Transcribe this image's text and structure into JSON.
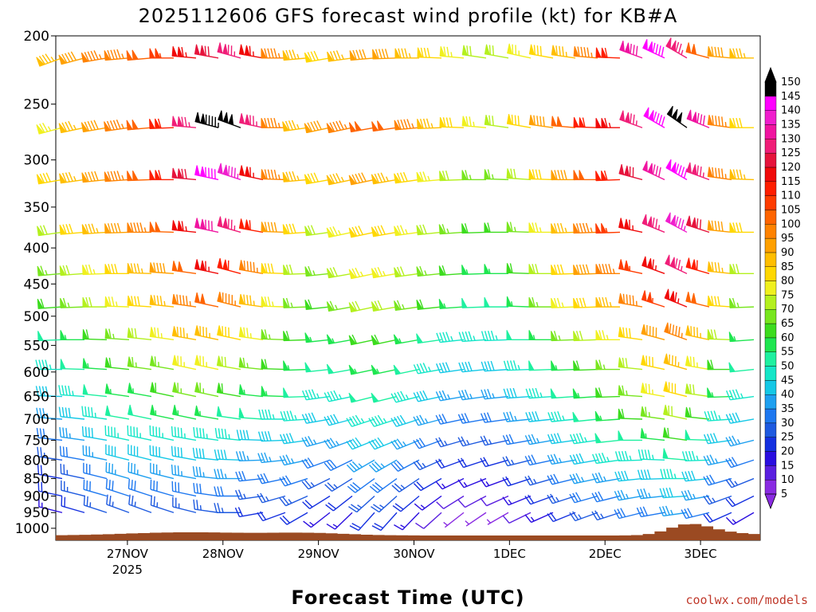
{
  "chart_data": {
    "type": "wind_barb_time_height",
    "title": "2025112606 GFS forecast wind profile (kt) for KB#A",
    "xlabel": "Forecast Time (UTC)",
    "credit": "coolwx.com/models",
    "y_unit": "hPa",
    "y_ticks": [
      200,
      250,
      300,
      350,
      400,
      450,
      500,
      550,
      600,
      650,
      700,
      750,
      800,
      850,
      900,
      950,
      1000
    ],
    "x_ticks": [
      {
        "label": "27NOV",
        "sublabel": "2025",
        "hour": 18
      },
      {
        "label": "28NOV",
        "hour": 42
      },
      {
        "label": "29NOV",
        "hour": 66
      },
      {
        "label": "30NOV",
        "hour": 90
      },
      {
        "label": "1DEC",
        "hour": 114
      },
      {
        "label": "2DEC",
        "hour": 138
      },
      {
        "label": "3DEC",
        "hour": 162
      }
    ],
    "x_range_hours": [
      0,
      177
    ],
    "colorbar_unit": "kt",
    "colorbar_levels": [
      5,
      10,
      15,
      20,
      25,
      30,
      35,
      40,
      45,
      50,
      55,
      60,
      65,
      70,
      75,
      80,
      85,
      90,
      95,
      100,
      105,
      110,
      115,
      120,
      125,
      130,
      135,
      140,
      145,
      150
    ],
    "colorbar_colors": [
      "#8a2be2",
      "#5a1fe0",
      "#2a0ee0",
      "#1430e0",
      "#1e5ae0",
      "#1e78f0",
      "#1ea0f0",
      "#14c8e6",
      "#14e6c8",
      "#1ef0a0",
      "#1ee650",
      "#3cdc1e",
      "#78e61e",
      "#b4f01e",
      "#f0f01e",
      "#ffd700",
      "#ffbe00",
      "#ffa000",
      "#ff8200",
      "#ff6400",
      "#ff3c00",
      "#ff1e00",
      "#f00a0a",
      "#e6143c",
      "#f01e78",
      "#f014a0",
      "#f01ecd",
      "#ff00ff",
      "#000000"
    ],
    "barb_rows": [
      {
        "level": 215,
        "speeds": [
          85,
          90,
          95,
          95,
          100,
          105,
          115,
          120,
          125,
          115,
          95,
          85,
          80,
          85,
          90,
          90,
          85,
          80,
          75,
          70,
          70,
          75,
          80,
          85,
          95,
          110,
          130,
          140,
          125,
          100,
          90,
          85
        ],
        "dirs": [
          250,
          255,
          260,
          265,
          265,
          270,
          275,
          280,
          285,
          280,
          270,
          265,
          260,
          262,
          265,
          268,
          270,
          272,
          275,
          278,
          280,
          282,
          280,
          278,
          275,
          272,
          290,
          295,
          300,
          285,
          275,
          270
        ]
      },
      {
        "level": 270,
        "speeds": [
          75,
          85,
          90,
          95,
          100,
          110,
          125,
          145,
          150,
          125,
          95,
          85,
          90,
          95,
          100,
          100,
          95,
          85,
          80,
          75,
          70,
          80,
          90,
          100,
          110,
          115,
          125,
          140,
          150,
          130,
          95,
          80
        ],
        "dirs": [
          255,
          258,
          260,
          262,
          265,
          268,
          275,
          285,
          290,
          282,
          270,
          262,
          258,
          258,
          260,
          262,
          265,
          268,
          272,
          275,
          278,
          280,
          278,
          275,
          272,
          270,
          290,
          300,
          305,
          292,
          278,
          270
        ]
      },
      {
        "level": 320,
        "speeds": [
          80,
          85,
          90,
          95,
          100,
          110,
          120,
          140,
          135,
          115,
          95,
          85,
          80,
          85,
          90,
          85,
          80,
          75,
          70,
          65,
          65,
          70,
          80,
          90,
          100,
          110,
          120,
          130,
          140,
          125,
          95,
          85
        ],
        "dirs": [
          260,
          262,
          264,
          266,
          268,
          270,
          275,
          282,
          288,
          282,
          272,
          265,
          260,
          258,
          258,
          260,
          262,
          265,
          268,
          270,
          272,
          274,
          272,
          270,
          270,
          268,
          285,
          295,
          300,
          290,
          278,
          272
        ]
      },
      {
        "level": 380,
        "speeds": [
          70,
          80,
          85,
          90,
          95,
          100,
          115,
          130,
          125,
          110,
          90,
          80,
          70,
          75,
          80,
          80,
          75,
          70,
          65,
          60,
          60,
          65,
          75,
          85,
          95,
          105,
          115,
          125,
          135,
          120,
          90,
          80
        ],
        "dirs": [
          262,
          265,
          266,
          268,
          270,
          272,
          276,
          282,
          286,
          280,
          272,
          266,
          262,
          258,
          258,
          260,
          262,
          264,
          266,
          268,
          270,
          272,
          270,
          268,
          268,
          268,
          282,
          292,
          298,
          288,
          276,
          270
        ]
      },
      {
        "level": 435,
        "speeds": [
          65,
          70,
          75,
          80,
          85,
          90,
          100,
          115,
          110,
          95,
          80,
          70,
          65,
          70,
          75,
          75,
          70,
          65,
          60,
          55,
          55,
          60,
          70,
          80,
          90,
          95,
          105,
          115,
          125,
          110,
          85,
          70
        ],
        "dirs": [
          265,
          266,
          268,
          270,
          272,
          274,
          278,
          282,
          285,
          280,
          272,
          268,
          264,
          260,
          258,
          260,
          262,
          264,
          266,
          268,
          270,
          272,
          270,
          268,
          268,
          270,
          282,
          290,
          295,
          286,
          276,
          270
        ]
      },
      {
        "level": 485,
        "speeds": [
          60,
          65,
          70,
          75,
          80,
          85,
          95,
          100,
          95,
          85,
          75,
          65,
          60,
          65,
          70,
          70,
          65,
          60,
          55,
          50,
          50,
          55,
          65,
          75,
          80,
          85,
          95,
          105,
          115,
          100,
          80,
          65
        ],
        "dirs": [
          266,
          268,
          270,
          272,
          274,
          276,
          278,
          282,
          284,
          278,
          272,
          268,
          264,
          260,
          258,
          260,
          262,
          264,
          266,
          268,
          270,
          272,
          270,
          268,
          268,
          270,
          280,
          288,
          292,
          284,
          274,
          268
        ]
      },
      {
        "level": 540,
        "speeds": [
          50,
          55,
          60,
          65,
          70,
          75,
          85,
          85,
          80,
          75,
          65,
          60,
          55,
          55,
          60,
          60,
          55,
          50,
          45,
          45,
          45,
          50,
          55,
          65,
          70,
          75,
          80,
          90,
          95,
          85,
          70,
          55
        ],
        "dirs": [
          268,
          270,
          272,
          274,
          276,
          278,
          280,
          282,
          282,
          278,
          272,
          268,
          264,
          260,
          258,
          258,
          260,
          262,
          264,
          266,
          268,
          270,
          270,
          268,
          268,
          270,
          278,
          285,
          290,
          282,
          272,
          266
        ]
      },
      {
        "level": 595,
        "speeds": [
          45,
          50,
          55,
          60,
          65,
          65,
          75,
          75,
          70,
          65,
          60,
          55,
          50,
          50,
          55,
          55,
          50,
          45,
          40,
          40,
          40,
          45,
          50,
          55,
          60,
          65,
          70,
          80,
          85,
          75,
          60,
          50
        ],
        "dirs": [
          270,
          272,
          274,
          276,
          278,
          280,
          282,
          282,
          280,
          276,
          272,
          268,
          264,
          260,
          258,
          258,
          258,
          260,
          262,
          264,
          266,
          268,
          268,
          268,
          268,
          270,
          276,
          282,
          286,
          280,
          270,
          264
        ]
      },
      {
        "level": 650,
        "speeds": [
          40,
          45,
          50,
          55,
          55,
          60,
          65,
          65,
          60,
          55,
          55,
          50,
          45,
          45,
          50,
          50,
          45,
          40,
          35,
          35,
          35,
          40,
          45,
          50,
          55,
          60,
          65,
          75,
          80,
          70,
          55,
          45
        ],
        "dirs": [
          272,
          274,
          276,
          278,
          280,
          282,
          282,
          282,
          280,
          276,
          272,
          268,
          262,
          258,
          256,
          256,
          256,
          258,
          260,
          262,
          264,
          266,
          266,
          266,
          266,
          268,
          274,
          280,
          284,
          278,
          268,
          262
        ]
      },
      {
        "level": 700,
        "speeds": [
          35,
          40,
          45,
          50,
          50,
          55,
          55,
          55,
          50,
          50,
          45,
          45,
          40,
          40,
          45,
          45,
          40,
          35,
          30,
          30,
          30,
          35,
          40,
          45,
          50,
          55,
          60,
          65,
          70,
          60,
          45,
          40
        ],
        "dirs": [
          274,
          276,
          278,
          280,
          282,
          282,
          282,
          280,
          278,
          274,
          270,
          266,
          260,
          255,
          252,
          252,
          252,
          255,
          258,
          260,
          262,
          264,
          264,
          264,
          264,
          266,
          272,
          278,
          282,
          276,
          266,
          260
        ]
      },
      {
        "level": 750,
        "speeds": [
          30,
          35,
          40,
          45,
          45,
          45,
          45,
          45,
          45,
          40,
          40,
          40,
          35,
          35,
          40,
          40,
          35,
          30,
          25,
          25,
          25,
          30,
          35,
          40,
          45,
          50,
          50,
          55,
          60,
          50,
          40,
          35
        ],
        "dirs": [
          276,
          278,
          280,
          282,
          282,
          282,
          280,
          278,
          276,
          272,
          268,
          262,
          255,
          250,
          248,
          248,
          248,
          250,
          254,
          256,
          258,
          260,
          260,
          262,
          262,
          264,
          270,
          276,
          278,
          272,
          262,
          256
        ]
      },
      {
        "level": 800,
        "speeds": [
          25,
          30,
          35,
          40,
          40,
          40,
          40,
          40,
          40,
          35,
          35,
          35,
          30,
          30,
          35,
          35,
          30,
          25,
          20,
          20,
          20,
          25,
          30,
          35,
          40,
          45,
          45,
          45,
          50,
          45,
          35,
          30
        ],
        "dirs": [
          278,
          280,
          282,
          284,
          284,
          282,
          280,
          276,
          272,
          268,
          264,
          258,
          250,
          244,
          240,
          240,
          242,
          246,
          250,
          252,
          254,
          256,
          258,
          260,
          260,
          262,
          268,
          272,
          275,
          268,
          258,
          252
        ]
      },
      {
        "level": 850,
        "speeds": [
          20,
          25,
          30,
          35,
          35,
          35,
          35,
          35,
          35,
          30,
          30,
          30,
          25,
          25,
          30,
          30,
          25,
          20,
          15,
          15,
          15,
          20,
          25,
          30,
          35,
          35,
          40,
          40,
          45,
          40,
          30,
          25
        ],
        "dirs": [
          280,
          282,
          284,
          286,
          286,
          284,
          280,
          276,
          270,
          264,
          258,
          252,
          244,
          238,
          234,
          234,
          236,
          240,
          244,
          248,
          250,
          252,
          254,
          256,
          258,
          260,
          264,
          268,
          270,
          264,
          254,
          248
        ]
      },
      {
        "level": 900,
        "speeds": [
          20,
          25,
          30,
          30,
          30,
          30,
          30,
          30,
          30,
          25,
          25,
          25,
          20,
          20,
          25,
          25,
          20,
          15,
          10,
          10,
          10,
          15,
          20,
          25,
          30,
          30,
          35,
          35,
          40,
          35,
          25,
          20
        ],
        "dirs": [
          282,
          284,
          286,
          288,
          288,
          286,
          282,
          278,
          270,
          262,
          254,
          246,
          238,
          232,
          228,
          228,
          230,
          234,
          238,
          242,
          246,
          248,
          250,
          252,
          254,
          256,
          260,
          264,
          266,
          260,
          250,
          244
        ]
      },
      {
        "level": 950,
        "speeds": [
          15,
          20,
          25,
          25,
          25,
          25,
          25,
          25,
          25,
          20,
          20,
          20,
          15,
          15,
          20,
          20,
          15,
          10,
          5,
          5,
          5,
          10,
          15,
          20,
          25,
          25,
          30,
          30,
          35,
          30,
          20,
          15
        ],
        "dirs": [
          284,
          286,
          288,
          290,
          290,
          288,
          284,
          278,
          270,
          260,
          250,
          240,
          232,
          226,
          222,
          222,
          224,
          228,
          232,
          236,
          240,
          244,
          246,
          248,
          250,
          252,
          256,
          260,
          262,
          256,
          246,
          240
        ]
      }
    ]
  }
}
